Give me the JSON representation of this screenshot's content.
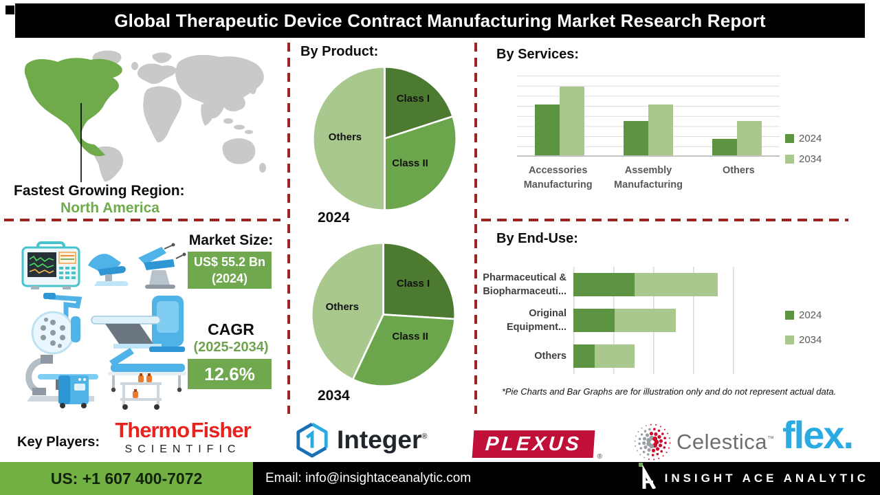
{
  "title": "Global Therapeutic Device Contract Manufacturing Market Research Report",
  "colors": {
    "dark_green": "#4d7a31",
    "mid_green": "#6ca64c",
    "light_green": "#a9c88e",
    "bar_green_2024": "#5d9441",
    "accent_green": "#6fa84e",
    "dashed_divider_red": "#9c2522",
    "footer_green": "#72b043",
    "title_bg": "#000000"
  },
  "region": {
    "label": "Fastest Growing Region:",
    "value": "North America"
  },
  "market_size": {
    "heading": "Market Size:",
    "value": "US$ 55.2 Bn",
    "year": "(2024)",
    "cagr_label": "CAGR",
    "cagr_period": "(2025-2034)",
    "cagr_value": "12.6%"
  },
  "sections": {
    "by_product": "By Product:",
    "by_services": "By Services:",
    "by_end_use": "By End-Use:"
  },
  "chart_data": [
    {
      "type": "pie",
      "title": "By Product (2024)",
      "year_label": "2024",
      "labels": [
        "Class I",
        "Class II",
        "Others"
      ],
      "values": [
        20,
        30,
        50
      ],
      "colors": [
        "#4d7a31",
        "#6ca64c",
        "#a9c88e"
      ],
      "legend_position": "none"
    },
    {
      "type": "pie",
      "title": "By Product (2034)",
      "year_label": "2034",
      "labels": [
        "Class I",
        "Class II",
        "Others"
      ],
      "values": [
        26,
        31,
        43
      ],
      "colors": [
        "#4d7a31",
        "#6ca64c",
        "#a9c88e"
      ],
      "legend_position": "none"
    },
    {
      "type": "bar",
      "title": "By Services:",
      "categories": [
        "Accessories Manufacturing",
        "Assembly Manufacturing",
        "Others"
      ],
      "series": [
        {
          "name": "2024",
          "color": "#5d9441",
          "values": [
            64,
            43,
            21
          ]
        },
        {
          "name": "2034",
          "color": "#a9c88e",
          "values": [
            86,
            64,
            43
          ]
        }
      ],
      "ylim": [
        0,
        100
      ],
      "grid": "horizontal",
      "legend_position": "right"
    },
    {
      "type": "stacked-bar-horizontal",
      "title": "By End-Use:",
      "categories": [
        "Pharmaceutical & Biopharmaceuti...",
        "Original Equipment...",
        "Others"
      ],
      "series": [
        {
          "name": "2024",
          "color": "#5d9441",
          "values": [
            34,
            23,
            12
          ]
        },
        {
          "name": "2034",
          "color": "#a9c88e",
          "values": [
            46,
            34,
            22
          ]
        }
      ],
      "xlim": [
        0,
        100
      ],
      "grid": "vertical",
      "legend_position": "right",
      "note": "*Pie Charts and Bar Graphs are for illustration only and do not represent actual data."
    }
  ],
  "key_players": {
    "label": "Key Players:",
    "thermo_line1": "Thermo Fisher",
    "thermo_line2": "SCIENTIFIC",
    "integer": "Integer",
    "integer_reg": "®",
    "plexus": "PLEXUS",
    "plexus_reg": "®",
    "celestica": "Celestica",
    "celestica_tm": "™",
    "flex": "flex."
  },
  "footer": {
    "phone": "US: +1 607 400-7072",
    "email": "Email: info@insightaceanalytic.com",
    "brand": "INSIGHT ACE ANALYTIC"
  }
}
